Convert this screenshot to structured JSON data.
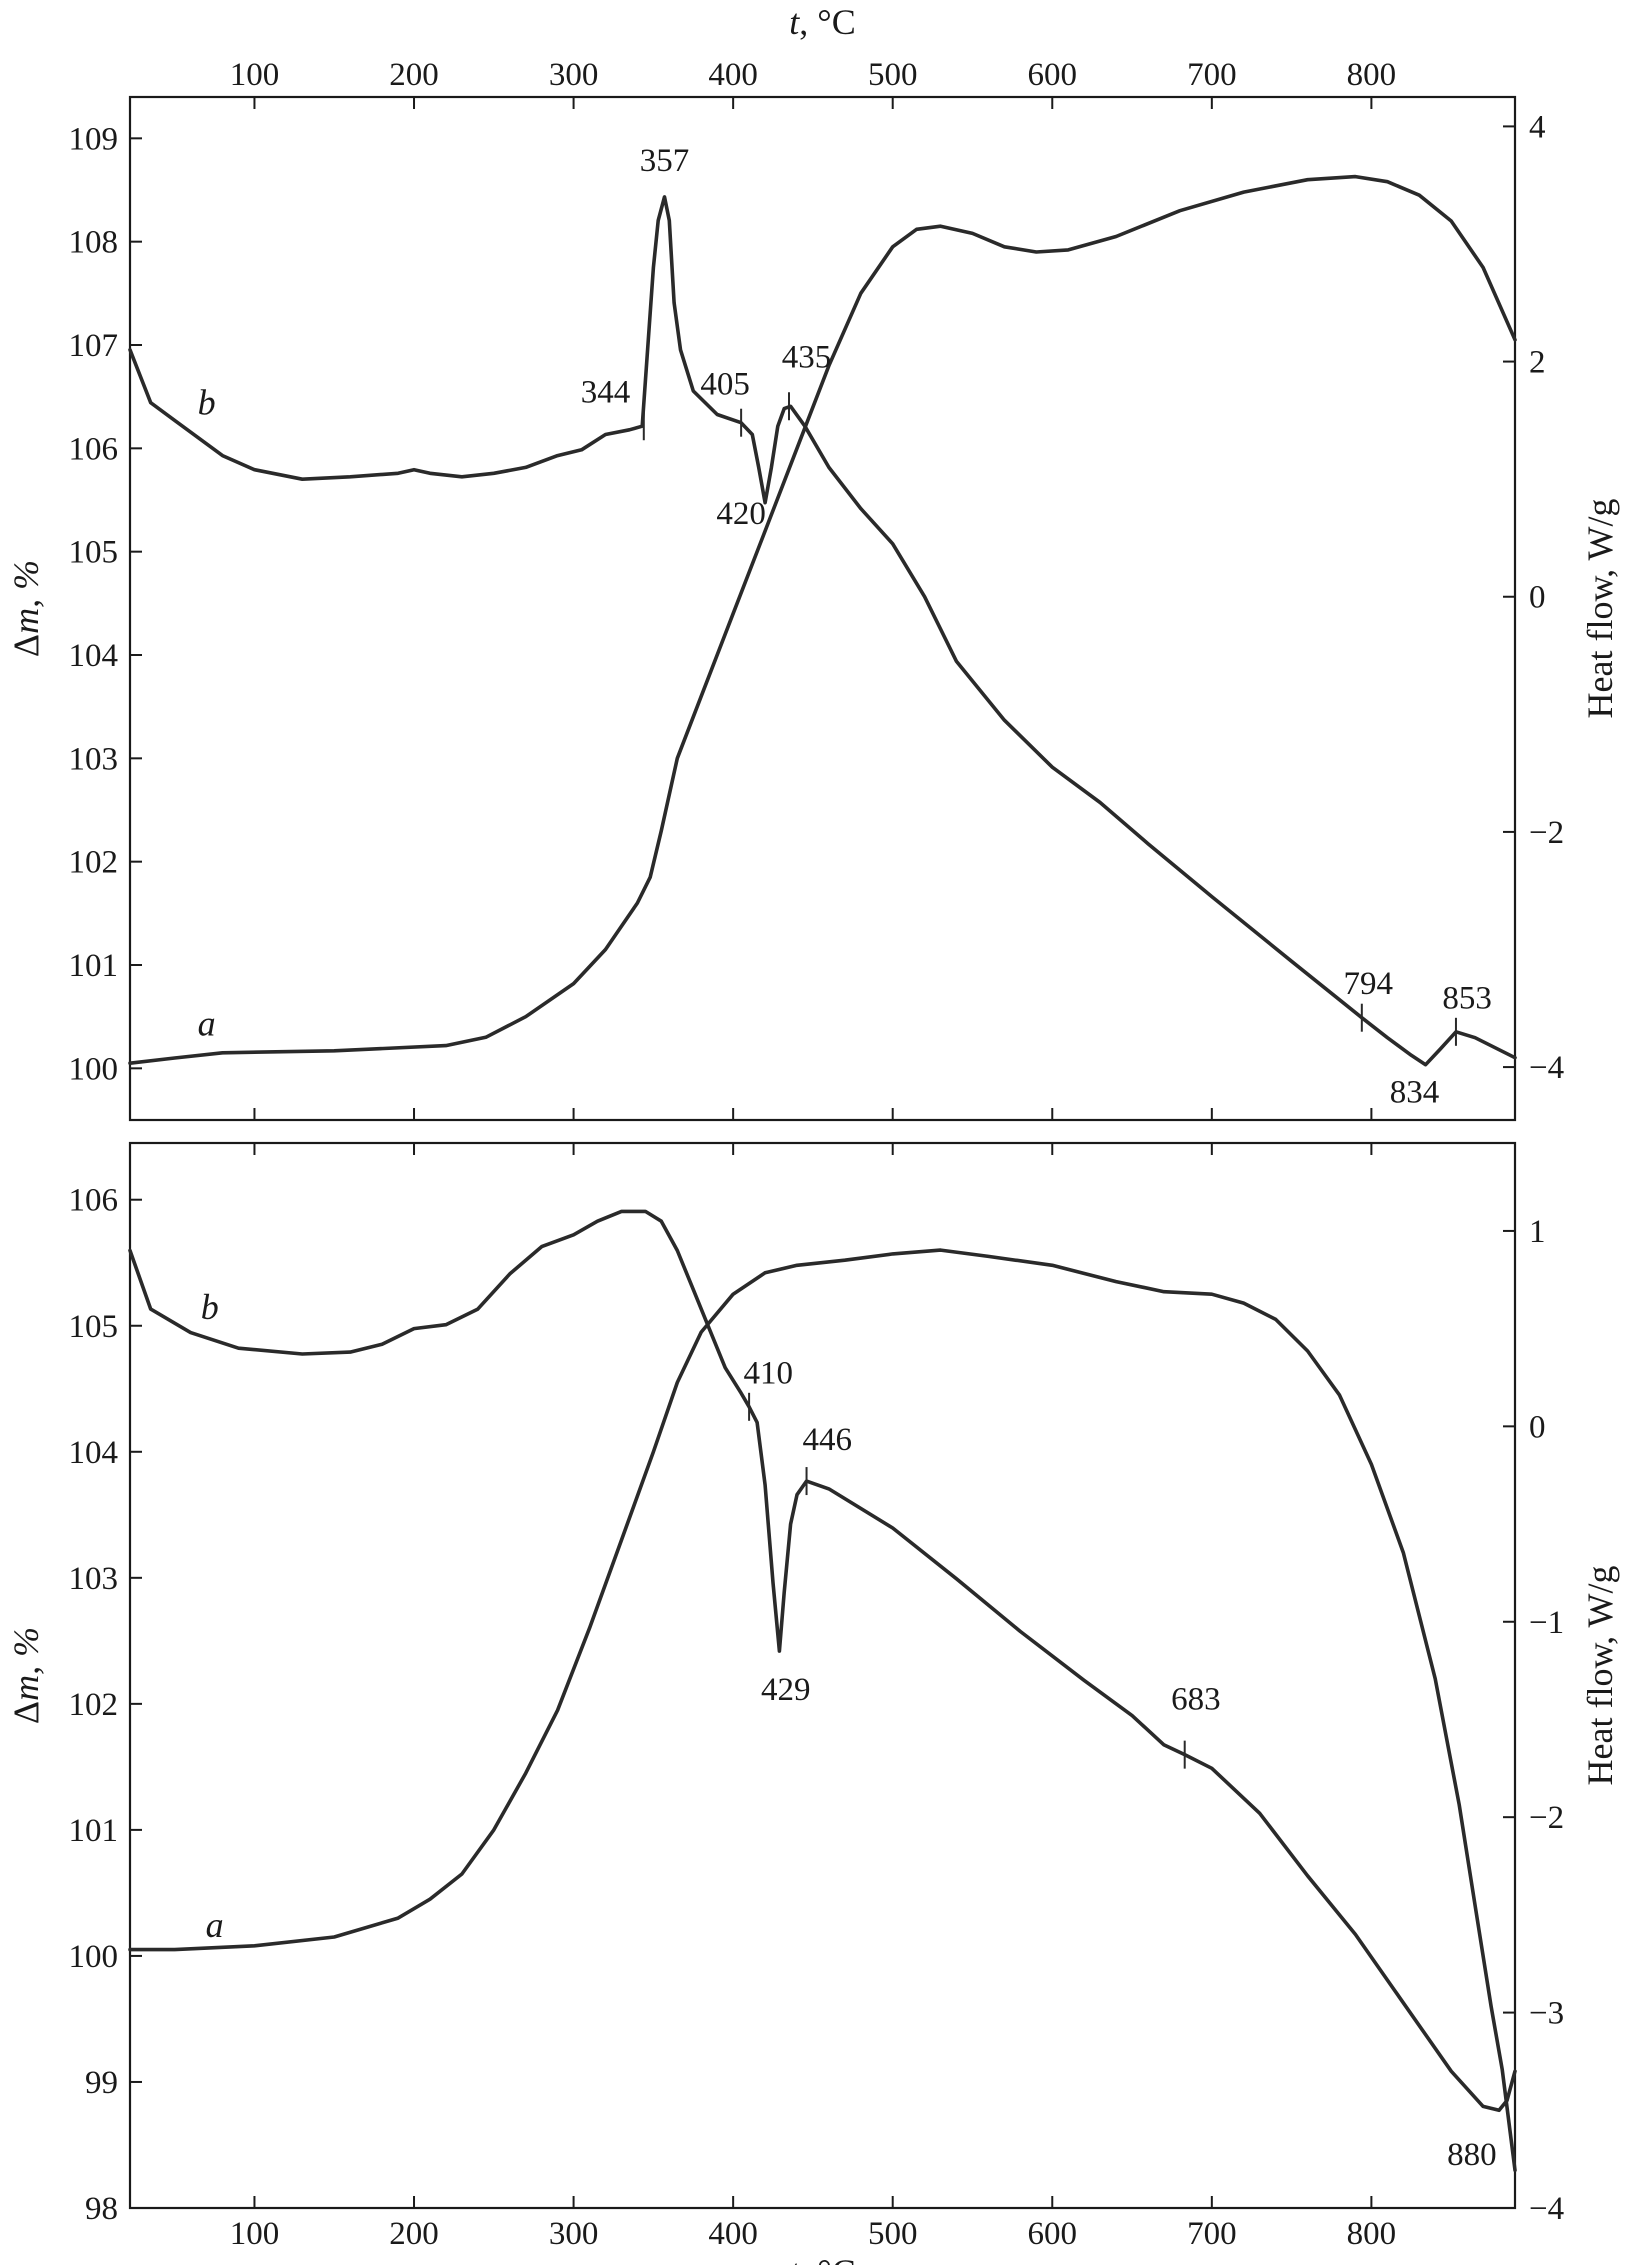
{
  "chart_data": [
    {
      "type": "line",
      "panel": "top",
      "x_axis": {
        "label_var": "t",
        "label_unit": ", °C",
        "position": "top",
        "range": [
          22,
          890
        ],
        "ticks": [
          100,
          200,
          300,
          400,
          500,
          600,
          700,
          800
        ]
      },
      "y_left": {
        "label_var": "m",
        "label_prefix": "Δ",
        "label_unit": ", %",
        "range": [
          99.5,
          109.4
        ],
        "ticks": [
          100,
          101,
          102,
          103,
          104,
          105,
          106,
          107,
          108,
          109
        ]
      },
      "y_right": {
        "label": "Heat flow, W/g",
        "range": [
          -4.45,
          4.25
        ],
        "ticks": [
          -4,
          -2,
          0,
          2,
          4
        ],
        "tick_labels": [
          "−4",
          "−2",
          "0",
          "2",
          "4"
        ]
      },
      "series": [
        {
          "name": "a",
          "axis": "left",
          "label": "a",
          "label_at": [
            70,
            100.32
          ],
          "points": [
            [
              22,
              100.05
            ],
            [
              50,
              100.1
            ],
            [
              80,
              100.15
            ],
            [
              150,
              100.17
            ],
            [
              220,
              100.22
            ],
            [
              245,
              100.3
            ],
            [
              270,
              100.5
            ],
            [
              300,
              100.82
            ],
            [
              320,
              101.15
            ],
            [
              340,
              101.6
            ],
            [
              348,
              101.85
            ],
            [
              355,
              102.3
            ],
            [
              365,
              103.0
            ],
            [
              380,
              103.6
            ],
            [
              400,
              104.4
            ],
            [
              420,
              105.2
            ],
            [
              440,
              106.0
            ],
            [
              460,
              106.8
            ],
            [
              480,
              107.5
            ],
            [
              500,
              107.95
            ],
            [
              515,
              108.12
            ],
            [
              530,
              108.15
            ],
            [
              550,
              108.08
            ],
            [
              570,
              107.95
            ],
            [
              590,
              107.9
            ],
            [
              610,
              107.92
            ],
            [
              640,
              108.05
            ],
            [
              680,
              108.3
            ],
            [
              720,
              108.48
            ],
            [
              760,
              108.6
            ],
            [
              790,
              108.63
            ],
            [
              810,
              108.58
            ],
            [
              830,
              108.45
            ],
            [
              850,
              108.2
            ],
            [
              870,
              107.75
            ],
            [
              890,
              107.05
            ]
          ]
        },
        {
          "name": "b",
          "axis": "right",
          "label": "b",
          "label_at": [
            70,
            1.55
          ],
          "points": [
            [
              22,
              2.1
            ],
            [
              35,
              1.65
            ],
            [
              50,
              1.5
            ],
            [
              80,
              1.2
            ],
            [
              100,
              1.08
            ],
            [
              130,
              1.0
            ],
            [
              160,
              1.02
            ],
            [
              190,
              1.05
            ],
            [
              200,
              1.08
            ],
            [
              210,
              1.05
            ],
            [
              230,
              1.02
            ],
            [
              250,
              1.05
            ],
            [
              270,
              1.1
            ],
            [
              290,
              1.2
            ],
            [
              305,
              1.25
            ],
            [
              320,
              1.38
            ],
            [
              335,
              1.42
            ],
            [
              343,
              1.45
            ],
            [
              350,
              2.8
            ],
            [
              353,
              3.2
            ],
            [
              357,
              3.4
            ],
            [
              360,
              3.2
            ],
            [
              363,
              2.5
            ],
            [
              367,
              2.1
            ],
            [
              375,
              1.75
            ],
            [
              390,
              1.55
            ],
            [
              405,
              1.48
            ],
            [
              412,
              1.38
            ],
            [
              416,
              1.1
            ],
            [
              420,
              0.8
            ],
            [
              424,
              1.1
            ],
            [
              428,
              1.45
            ],
            [
              432,
              1.6
            ],
            [
              436,
              1.62
            ],
            [
              445,
              1.45
            ],
            [
              460,
              1.1
            ],
            [
              480,
              0.75
            ],
            [
              500,
              0.45
            ],
            [
              520,
              0.0
            ],
            [
              540,
              -0.55
            ],
            [
              570,
              -1.05
            ],
            [
              600,
              -1.45
            ],
            [
              630,
              -1.75
            ],
            [
              660,
              -2.1
            ],
            [
              700,
              -2.55
            ],
            [
              750,
              -3.1
            ],
            [
              794,
              -3.58
            ],
            [
              810,
              -3.75
            ],
            [
              825,
              -3.9
            ],
            [
              834,
              -3.98
            ],
            [
              843,
              -3.85
            ],
            [
              853,
              -3.7
            ],
            [
              865,
              -3.75
            ],
            [
              890,
              -3.92
            ]
          ]
        }
      ],
      "annotations": [
        {
          "text": "357",
          "series": "b",
          "x": 357,
          "y": 3.4,
          "marker": false,
          "label_at": [
            357,
            3.62
          ]
        },
        {
          "text": "344",
          "series": "b",
          "x": 344,
          "y": 1.45,
          "marker": true,
          "label_at": [
            320,
            1.65
          ]
        },
        {
          "text": "405",
          "series": "b",
          "x": 405,
          "y": 1.48,
          "marker": true,
          "label_at": [
            395,
            1.72
          ]
        },
        {
          "text": "435",
          "series": "b",
          "x": 435,
          "y": 1.62,
          "marker": true,
          "label_at": [
            446,
            1.95
          ]
        },
        {
          "text": "420",
          "series": "b",
          "x": 420,
          "y": 0.8,
          "marker": false,
          "label_at": [
            405,
            0.62
          ]
        },
        {
          "text": "794",
          "series": "b",
          "x": 794,
          "y": -3.58,
          "marker": true,
          "label_at": [
            798,
            -3.38
          ]
        },
        {
          "text": "853",
          "series": "b",
          "x": 853,
          "y": -3.7,
          "marker": true,
          "label_at": [
            860,
            -3.5
          ]
        },
        {
          "text": "834",
          "series": "b",
          "x": 834,
          "y": -3.98,
          "marker": false,
          "label_at": [
            827,
            -4.3
          ]
        }
      ]
    },
    {
      "type": "line",
      "panel": "bottom",
      "x_axis": {
        "label_var": "t",
        "label_unit": ", °C",
        "position": "bottom",
        "range": [
          22,
          890
        ],
        "ticks": [
          100,
          200,
          300,
          400,
          500,
          600,
          700,
          800
        ]
      },
      "y_left": {
        "label_var": "m",
        "label_prefix": "Δ",
        "label_unit": ", %",
        "range": [
          98.0,
          106.45
        ],
        "ticks": [
          98,
          99,
          100,
          101,
          102,
          103,
          104,
          105,
          106
        ]
      },
      "y_right": {
        "label": "Heat flow, W/g",
        "range": [
          -4.0,
          1.45
        ],
        "ticks": [
          -4,
          -3,
          -2,
          -1,
          0,
          1
        ],
        "tick_labels": [
          "−4",
          "−3",
          "−2",
          "−1",
          "0",
          "1"
        ]
      },
      "series": [
        {
          "name": "a",
          "axis": "left",
          "label": "a",
          "label_at": [
            75,
            100.15
          ],
          "points": [
            [
              22,
              100.05
            ],
            [
              50,
              100.05
            ],
            [
              100,
              100.08
            ],
            [
              150,
              100.15
            ],
            [
              190,
              100.3
            ],
            [
              210,
              100.45
            ],
            [
              230,
              100.65
            ],
            [
              250,
              101.0
            ],
            [
              270,
              101.45
            ],
            [
              290,
              101.95
            ],
            [
              310,
              102.6
            ],
            [
              330,
              103.3
            ],
            [
              350,
              104.0
            ],
            [
              365,
              104.55
            ],
            [
              380,
              104.95
            ],
            [
              400,
              105.25
            ],
            [
              420,
              105.42
            ],
            [
              440,
              105.48
            ],
            [
              470,
              105.52
            ],
            [
              500,
              105.57
            ],
            [
              530,
              105.6
            ],
            [
              560,
              105.55
            ],
            [
              600,
              105.48
            ],
            [
              640,
              105.35
            ],
            [
              670,
              105.27
            ],
            [
              700,
              105.25
            ],
            [
              720,
              105.18
            ],
            [
              740,
              105.05
            ],
            [
              760,
              104.8
            ],
            [
              780,
              104.45
            ],
            [
              800,
              103.9
            ],
            [
              820,
              103.2
            ],
            [
              840,
              102.2
            ],
            [
              855,
              101.2
            ],
            [
              865,
              100.4
            ],
            [
              875,
              99.6
            ],
            [
              882,
              99.1
            ],
            [
              890,
              98.3
            ]
          ]
        },
        {
          "name": "b",
          "axis": "right",
          "label": "b",
          "label_at": [
            72,
            0.55
          ],
          "points": [
            [
              22,
              0.9
            ],
            [
              35,
              0.6
            ],
            [
              60,
              0.48
            ],
            [
              90,
              0.4
            ],
            [
              130,
              0.37
            ],
            [
              160,
              0.38
            ],
            [
              180,
              0.42
            ],
            [
              200,
              0.5
            ],
            [
              220,
              0.52
            ],
            [
              240,
              0.6
            ],
            [
              260,
              0.78
            ],
            [
              280,
              0.92
            ],
            [
              300,
              0.98
            ],
            [
              315,
              1.05
            ],
            [
              330,
              1.1
            ],
            [
              345,
              1.1
            ],
            [
              355,
              1.05
            ],
            [
              365,
              0.9
            ],
            [
              375,
              0.7
            ],
            [
              385,
              0.5
            ],
            [
              395,
              0.3
            ],
            [
              405,
              0.17
            ],
            [
              410,
              0.1
            ],
            [
              415,
              0.02
            ],
            [
              420,
              -0.3
            ],
            [
              425,
              -0.8
            ],
            [
              429,
              -1.15
            ],
            [
              432,
              -0.85
            ],
            [
              436,
              -0.5
            ],
            [
              440,
              -0.35
            ],
            [
              446,
              -0.28
            ],
            [
              460,
              -0.32
            ],
            [
              500,
              -0.52
            ],
            [
              540,
              -0.78
            ],
            [
              580,
              -1.05
            ],
            [
              620,
              -1.3
            ],
            [
              650,
              -1.48
            ],
            [
              670,
              -1.63
            ],
            [
              683,
              -1.68
            ],
            [
              700,
              -1.75
            ],
            [
              730,
              -1.98
            ],
            [
              760,
              -2.3
            ],
            [
              790,
              -2.6
            ],
            [
              820,
              -2.95
            ],
            [
              850,
              -3.3
            ],
            [
              870,
              -3.48
            ],
            [
              880,
              -3.5
            ],
            [
              885,
              -3.45
            ],
            [
              890,
              -3.3
            ]
          ]
        }
      ],
      "annotations": [
        {
          "text": "410",
          "series": "b",
          "x": 410,
          "y": 0.1,
          "marker": true,
          "label_at": [
            422,
            0.22
          ]
        },
        {
          "text": "446",
          "series": "b",
          "x": 446,
          "y": -0.28,
          "marker": true,
          "label_at": [
            459,
            -0.12
          ]
        },
        {
          "text": "429",
          "series": "b",
          "x": 429,
          "y": -1.15,
          "marker": false,
          "label_at": [
            433,
            -1.4
          ]
        },
        {
          "text": "683",
          "series": "b",
          "x": 683,
          "y": -1.68,
          "marker": true,
          "label_at": [
            690,
            -1.45
          ]
        },
        {
          "text": "880",
          "series": "b",
          "x": 880,
          "y": -3.5,
          "marker": false,
          "label_at": [
            863,
            -3.78
          ]
        }
      ]
    }
  ]
}
